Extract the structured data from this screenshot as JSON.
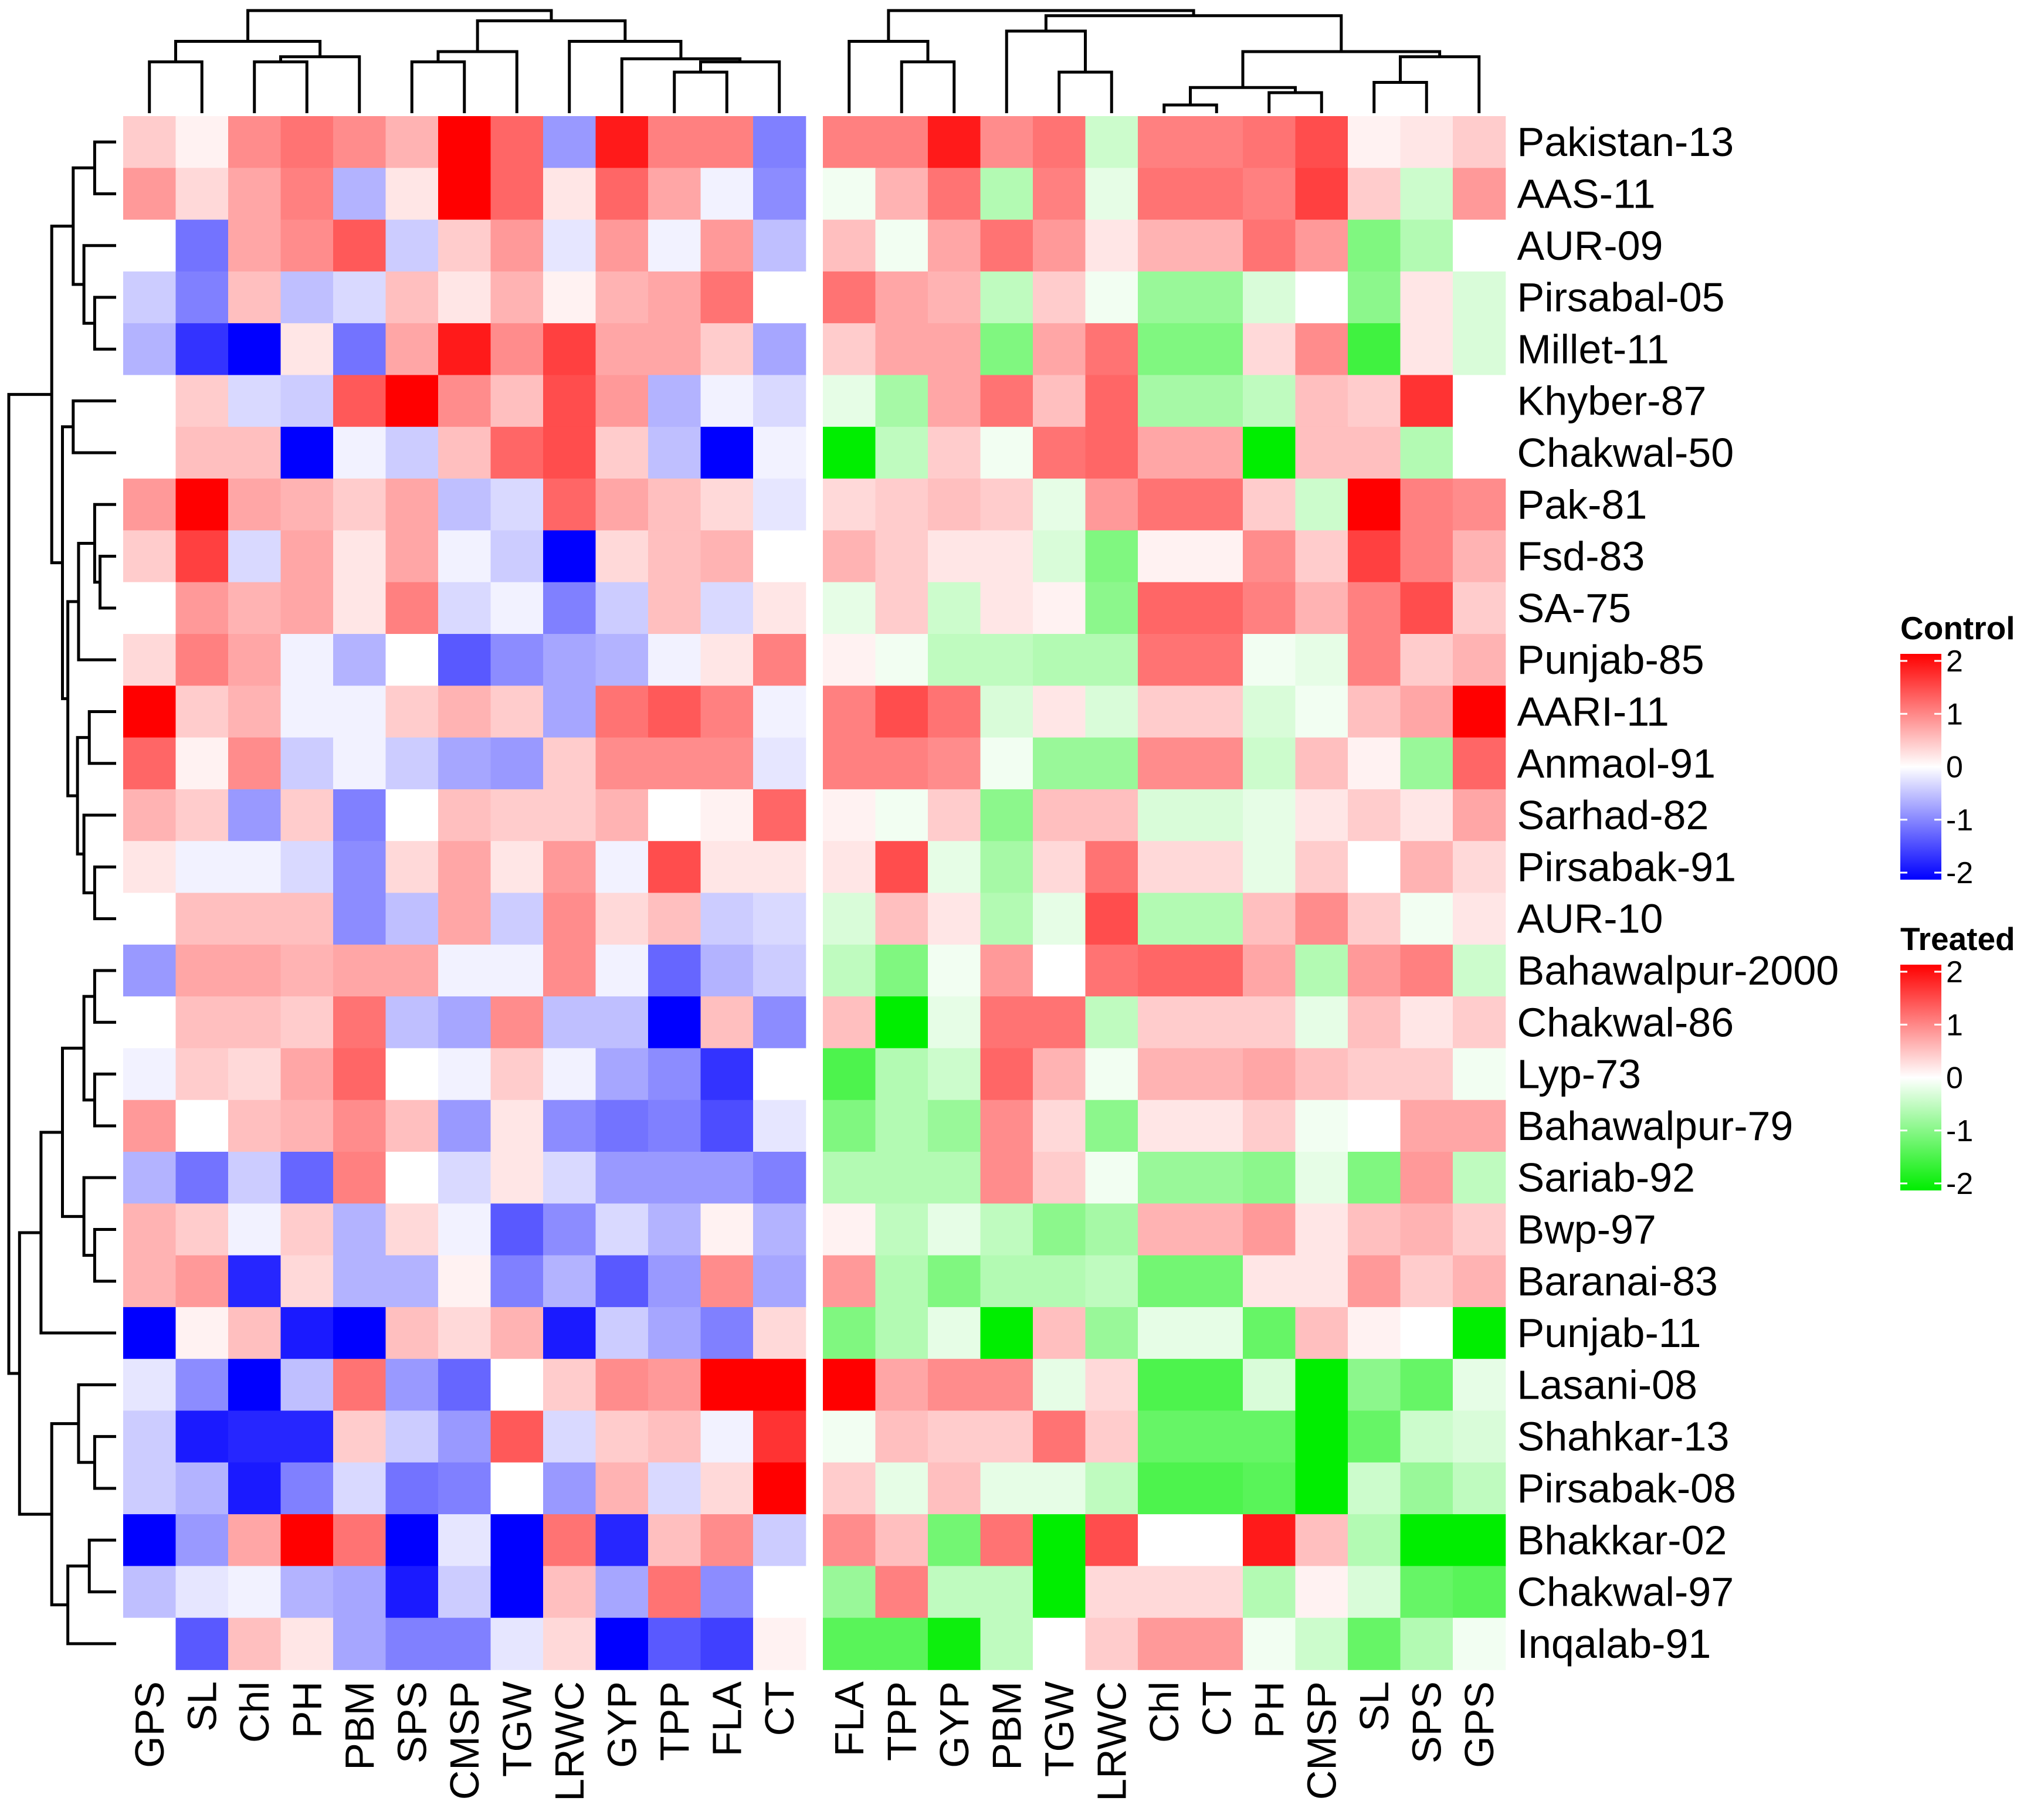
{
  "chart_data": {
    "type": "heatmap",
    "title": "",
    "rows": [
      "Pakistan-13",
      "AAS-11",
      "AUR-09",
      "Pirsabal-05",
      "Millet-11",
      "Khyber-87",
      "Chakwal-50",
      "Pak-81",
      "Fsd-83",
      "SA-75",
      "Punjab-85",
      "AARI-11",
      "Anmaol-91",
      "Sarhad-82",
      "Pirsabak-91",
      "AUR-10",
      "Bahawalpur-2000",
      "Chakwal-86",
      "Lyp-73",
      "Bahawalpur-79",
      "Sariab-92",
      "Bwp-97",
      "Baranai-83",
      "Punjab-11",
      "Lasani-08",
      "Shahkar-13",
      "Pirsabak-08",
      "Bhakkar-02",
      "Chakwal-97",
      "Inqalab-91"
    ],
    "panels": [
      {
        "name": "Control",
        "colors": {
          "low": "#0000ff",
          "mid": "#ffffff",
          "high": "#ff0000"
        },
        "columns": [
          "GPS",
          "SL",
          "Chl",
          "PH",
          "PBM",
          "SPS",
          "CMSP",
          "TGW",
          "LRWC",
          "GYP",
          "TPP",
          "FLA",
          "CT"
        ],
        "values": [
          [
            0.4,
            0.1,
            0.9,
            1.1,
            0.9,
            0.6,
            2.0,
            1.2,
            -0.8,
            1.8,
            1.0,
            1.0,
            -1.0
          ],
          [
            0.8,
            0.3,
            0.7,
            1.0,
            -0.6,
            0.2,
            2.0,
            1.2,
            0.2,
            1.2,
            0.7,
            -0.1,
            -0.9
          ],
          [
            0.0,
            -1.1,
            0.7,
            0.9,
            1.3,
            -0.4,
            0.4,
            0.8,
            -0.2,
            0.8,
            -0.1,
            0.8,
            -0.5
          ],
          [
            -0.4,
            -1.0,
            0.5,
            -0.5,
            -0.3,
            0.5,
            0.2,
            0.6,
            0.1,
            0.6,
            0.7,
            1.1,
            0.0
          ],
          [
            -0.6,
            -1.6,
            -2.0,
            0.2,
            -1.1,
            0.7,
            1.8,
            0.9,
            1.5,
            0.7,
            0.7,
            0.4,
            -0.7
          ],
          [
            0.0,
            0.4,
            -0.3,
            -0.4,
            1.3,
            2.0,
            0.9,
            0.5,
            1.4,
            0.8,
            -0.6,
            -0.1,
            -0.3
          ],
          [
            0.0,
            0.5,
            0.5,
            -2.0,
            -0.1,
            -0.4,
            0.5,
            1.2,
            1.4,
            0.4,
            -0.5,
            -2.0,
            -0.1
          ],
          [
            0.8,
            2.0,
            0.7,
            0.6,
            0.4,
            0.7,
            -0.5,
            -0.3,
            1.2,
            0.7,
            0.5,
            0.3,
            -0.2
          ],
          [
            0.4,
            1.5,
            -0.3,
            0.7,
            0.2,
            0.7,
            -0.1,
            -0.4,
            -2.0,
            0.3,
            0.5,
            0.6,
            0.0
          ],
          [
            0.0,
            0.8,
            0.6,
            0.7,
            0.2,
            1.0,
            -0.3,
            -0.1,
            -1.0,
            -0.4,
            0.5,
            -0.3,
            0.2
          ],
          [
            0.3,
            1.0,
            0.7,
            -0.1,
            -0.6,
            0.0,
            -1.3,
            -0.9,
            -0.7,
            -0.6,
            -0.1,
            0.2,
            1.0
          ],
          [
            2.0,
            0.4,
            0.6,
            -0.1,
            -0.1,
            0.4,
            0.6,
            0.4,
            -0.7,
            1.1,
            1.3,
            1.0,
            -0.1
          ],
          [
            1.2,
            0.1,
            0.9,
            -0.4,
            -0.1,
            -0.4,
            -0.7,
            -0.8,
            0.4,
            0.9,
            0.9,
            0.9,
            -0.2
          ],
          [
            0.6,
            0.4,
            -0.8,
            0.4,
            -1.0,
            0.0,
            0.5,
            0.4,
            0.4,
            0.6,
            0.0,
            0.1,
            1.2
          ],
          [
            0.2,
            -0.1,
            -0.1,
            -0.3,
            -0.9,
            0.3,
            0.7,
            0.2,
            0.8,
            -0.1,
            1.4,
            0.2,
            0.2
          ],
          [
            0.0,
            0.5,
            0.5,
            0.5,
            -0.9,
            -0.5,
            0.7,
            -0.4,
            0.9,
            0.3,
            0.5,
            -0.4,
            -0.3
          ],
          [
            -0.8,
            0.7,
            0.7,
            0.6,
            0.7,
            0.7,
            -0.1,
            -0.1,
            0.9,
            -0.1,
            -1.2,
            -0.6,
            -0.4
          ],
          [
            0.0,
            0.5,
            0.5,
            0.4,
            1.1,
            -0.5,
            -0.7,
            0.9,
            -0.5,
            -0.5,
            -2.0,
            0.5,
            -0.9
          ],
          [
            -0.1,
            0.4,
            0.3,
            0.7,
            1.2,
            0.0,
            -0.1,
            0.4,
            -0.1,
            -0.7,
            -0.9,
            -1.6,
            0.0
          ],
          [
            0.8,
            0.0,
            0.5,
            0.6,
            0.9,
            0.5,
            -0.8,
            0.2,
            -0.9,
            -1.1,
            -1.0,
            -1.4,
            -0.2
          ],
          [
            -0.6,
            -1.1,
            -0.4,
            -1.2,
            1.0,
            0.0,
            -0.3,
            0.2,
            -0.3,
            -0.8,
            -0.8,
            -0.8,
            -1.0
          ],
          [
            0.6,
            0.4,
            -0.1,
            0.4,
            -0.6,
            0.3,
            -0.1,
            -1.3,
            -0.9,
            -0.3,
            -0.6,
            0.1,
            -0.6
          ],
          [
            0.6,
            0.8,
            -1.7,
            0.3,
            -0.6,
            -0.6,
            0.1,
            -1.0,
            -0.6,
            -1.3,
            -0.8,
            0.9,
            -0.7
          ],
          [
            -2.0,
            0.1,
            0.5,
            -1.8,
            -2.0,
            0.5,
            0.3,
            0.6,
            -1.8,
            -0.4,
            -0.7,
            -1.0,
            0.3
          ],
          [
            -0.2,
            -0.9,
            -2.0,
            -0.5,
            1.1,
            -0.8,
            -1.2,
            0.0,
            0.4,
            0.9,
            0.8,
            2.0,
            2.0
          ],
          [
            -0.4,
            -1.8,
            -1.7,
            -1.7,
            0.4,
            -0.4,
            -0.8,
            1.3,
            -0.3,
            0.4,
            0.5,
            -0.1,
            1.6
          ],
          [
            -0.4,
            -0.6,
            -1.8,
            -1.0,
            -0.3,
            -1.1,
            -1.0,
            0.0,
            -0.8,
            0.6,
            -0.3,
            0.3,
            2.0
          ],
          [
            -2.0,
            -0.8,
            0.7,
            2.0,
            1.1,
            -2.0,
            -0.2,
            -2.0,
            1.1,
            -1.7,
            0.5,
            0.9,
            -0.4
          ],
          [
            -0.5,
            -0.2,
            -0.1,
            -0.6,
            -0.7,
            -1.8,
            -0.4,
            -2.0,
            0.5,
            -0.7,
            1.1,
            -0.9,
            0.0
          ],
          [
            0.0,
            -1.3,
            0.5,
            0.2,
            -0.7,
            -1.0,
            -1.0,
            -0.2,
            0.3,
            -2.0,
            -1.3,
            -1.5,
            0.1
          ]
        ]
      },
      {
        "name": "Treated",
        "colors": {
          "low": "#00ee00",
          "mid": "#ffffff",
          "high": "#ff0000"
        },
        "columns": [
          "FLA",
          "TPP",
          "GYP",
          "PBM",
          "TGW",
          "LRWC",
          "Chl",
          "CT",
          "PH",
          "CMSP",
          "SL",
          "SPS",
          "GPS"
        ],
        "values": [
          [
            1.0,
            1.0,
            1.8,
            0.9,
            1.1,
            -0.4,
            1.0,
            1.0,
            1.1,
            1.4,
            0.1,
            0.2,
            0.4
          ],
          [
            -0.1,
            0.6,
            1.1,
            -0.6,
            1.0,
            -0.2,
            1.1,
            1.1,
            1.0,
            1.5,
            0.4,
            -0.4,
            0.8
          ],
          [
            0.5,
            -0.1,
            0.7,
            1.1,
            0.8,
            0.2,
            0.6,
            0.6,
            1.1,
            0.8,
            -1.0,
            -0.6,
            0.0
          ],
          [
            1.1,
            0.7,
            0.6,
            -0.5,
            0.4,
            -0.1,
            -0.8,
            -0.8,
            -0.3,
            0.0,
            -0.9,
            0.2,
            -0.3
          ],
          [
            0.4,
            0.7,
            0.7,
            -1.0,
            0.7,
            1.1,
            -1.0,
            -1.0,
            0.3,
            0.9,
            -1.5,
            0.2,
            -0.3
          ],
          [
            -0.2,
            -0.7,
            0.7,
            1.1,
            0.5,
            1.2,
            -0.7,
            -0.7,
            -0.5,
            0.5,
            0.4,
            1.6,
            0.0
          ],
          [
            -2.0,
            -0.5,
            0.4,
            -0.1,
            1.1,
            1.2,
            0.7,
            0.7,
            -2.0,
            0.5,
            0.5,
            -0.6,
            0.0
          ],
          [
            0.3,
            0.4,
            0.5,
            0.4,
            -0.2,
            0.8,
            1.1,
            1.1,
            0.4,
            -0.4,
            2.0,
            1.0,
            0.9
          ],
          [
            0.6,
            0.4,
            0.2,
            0.2,
            -0.3,
            -1.0,
            0.1,
            0.1,
            0.9,
            0.4,
            1.5,
            1.0,
            0.6
          ],
          [
            -0.2,
            0.4,
            -0.4,
            0.2,
            0.1,
            -0.9,
            1.2,
            1.2,
            1.0,
            0.6,
            1.0,
            1.4,
            0.4
          ],
          [
            0.1,
            -0.1,
            -0.5,
            -0.5,
            -0.6,
            -0.6,
            1.1,
            1.1,
            -0.1,
            -0.2,
            1.0,
            0.4,
            0.6
          ],
          [
            1.0,
            1.4,
            1.1,
            -0.3,
            0.2,
            -0.3,
            0.4,
            0.4,
            -0.3,
            -0.1,
            0.5,
            0.7,
            2.0
          ],
          [
            1.0,
            1.0,
            0.9,
            -0.1,
            -0.8,
            -0.8,
            0.9,
            0.9,
            -0.4,
            0.5,
            0.1,
            -0.8,
            1.2
          ],
          [
            0.1,
            -0.1,
            0.4,
            -0.9,
            0.5,
            0.5,
            -0.3,
            -0.3,
            -0.2,
            0.2,
            0.4,
            0.2,
            0.7
          ],
          [
            0.2,
            1.4,
            -0.2,
            -0.7,
            0.3,
            1.1,
            0.3,
            0.3,
            -0.2,
            0.4,
            0.0,
            0.6,
            0.3
          ],
          [
            -0.3,
            0.5,
            0.2,
            -0.6,
            -0.2,
            1.4,
            -0.6,
            -0.6,
            0.5,
            0.9,
            0.4,
            -0.1,
            0.2
          ],
          [
            -0.5,
            -1.0,
            -0.1,
            0.8,
            0.0,
            1.1,
            1.2,
            1.2,
            0.7,
            -0.6,
            0.8,
            1.0,
            -0.4
          ],
          [
            0.5,
            -2.0,
            -0.2,
            1.1,
            1.1,
            -0.5,
            0.4,
            0.4,
            0.4,
            -0.2,
            0.5,
            0.2,
            0.4
          ],
          [
            -1.4,
            -0.6,
            -0.4,
            1.2,
            0.6,
            -0.1,
            0.6,
            0.6,
            0.7,
            0.5,
            0.4,
            0.4,
            -0.1
          ],
          [
            -1.0,
            -0.6,
            -0.8,
            0.9,
            0.3,
            -0.9,
            0.2,
            0.2,
            0.4,
            -0.1,
            0.0,
            0.7,
            0.7
          ],
          [
            -0.6,
            -0.6,
            -0.6,
            0.9,
            0.4,
            -0.1,
            -0.8,
            -0.8,
            -0.9,
            -0.2,
            -1.0,
            0.8,
            -0.5
          ],
          [
            0.1,
            -0.5,
            -0.2,
            -0.5,
            -0.9,
            -0.7,
            0.6,
            0.6,
            0.8,
            0.2,
            0.5,
            0.6,
            0.4
          ],
          [
            0.8,
            -0.6,
            -1.0,
            -0.6,
            -0.6,
            -0.5,
            -1.1,
            -1.1,
            0.2,
            0.2,
            0.8,
            0.4,
            0.6
          ],
          [
            -1.0,
            -0.6,
            -0.2,
            -2.0,
            0.5,
            -0.8,
            -0.2,
            -0.2,
            -1.2,
            0.5,
            0.1,
            0.0,
            -2.0
          ],
          [
            2.0,
            0.7,
            0.9,
            0.9,
            -0.2,
            0.3,
            -1.4,
            -1.4,
            -0.3,
            -2.0,
            -0.9,
            -1.2,
            -0.2
          ],
          [
            -0.1,
            0.5,
            0.4,
            0.4,
            1.1,
            0.4,
            -1.2,
            -1.2,
            -1.2,
            -2.0,
            -1.2,
            -0.4,
            -0.3
          ],
          [
            0.4,
            -0.2,
            0.5,
            -0.2,
            -0.2,
            -0.5,
            -1.4,
            -1.4,
            -1.3,
            -2.0,
            -0.4,
            -0.8,
            -0.5
          ],
          [
            0.9,
            0.5,
            -1.1,
            1.1,
            -2.0,
            1.4,
            0.0,
            0.0,
            1.8,
            0.5,
            -0.6,
            -2.0,
            -2.0
          ],
          [
            -0.8,
            1.0,
            -0.5,
            -0.5,
            -2.0,
            0.3,
            0.3,
            0.3,
            -0.6,
            0.1,
            -0.3,
            -1.2,
            -1.3
          ],
          [
            -1.3,
            -1.3,
            -1.9,
            -0.5,
            0.0,
            0.4,
            0.8,
            0.8,
            -0.1,
            -0.4,
            -1.2,
            -0.6,
            -0.1
          ]
        ]
      }
    ],
    "legends": [
      {
        "title": "Control",
        "ticks": [
          "2",
          "1",
          "0",
          "-1",
          "-2"
        ]
      },
      {
        "title": "Treated",
        "ticks": [
          "2",
          "1",
          "0",
          "-1",
          "-2"
        ]
      }
    ],
    "value_range": [
      -2,
      2
    ]
  }
}
